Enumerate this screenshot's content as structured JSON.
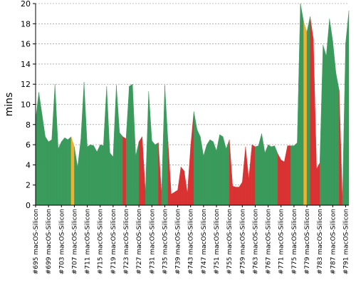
{
  "chart_data": {
    "type": "area",
    "ylabel": "mins",
    "ylim": [
      0,
      20
    ],
    "yticks": [
      0,
      2,
      4,
      6,
      8,
      10,
      12,
      14,
      16,
      18,
      20
    ],
    "grid": true,
    "status_colors": {
      "passed": "#3a9a5b",
      "failed": "#d93232",
      "unstable": "#f0b030"
    },
    "xtick_labels": [
      "#695 macOS-Silicon",
      "#699 macOS-Silicon",
      "#703 macOS-Silicon",
      "#707 macOS-Silicon",
      "#711 macOS-Silicon",
      "#715 macOS-Silicon",
      "#719 macOS-Silicon",
      "#723 macOS-Silicon",
      "#727 macOS-Silicon",
      "#731 macOS-Silicon",
      "#735 macOS-Silicon",
      "#739 macOS-Silicon",
      "#743 macOS-Silicon",
      "#747 macOS-Silicon",
      "#751 macOS-Silicon",
      "#755 macOS-Silicon",
      "#759 macOS-Silicon",
      "#763 macOS-Silicon",
      "#767 macOS-Silicon",
      "#771 macOS-Silicon",
      "#775 macOS-Silicon",
      "#779 macOS-Silicon",
      "#783 macOS-Silicon",
      "#787 macOS-Silicon",
      "#791 macOS-Silicon"
    ],
    "x": [
      695,
      696,
      697,
      698,
      699,
      700,
      701,
      702,
      703,
      704,
      705,
      706,
      707,
      708,
      709,
      710,
      711,
      712,
      713,
      714,
      715,
      716,
      717,
      718,
      719,
      720,
      721,
      722,
      723,
      724,
      725,
      726,
      727,
      728,
      729,
      730,
      731,
      732,
      733,
      734,
      735,
      736,
      737,
      738,
      739,
      740,
      741,
      742,
      743,
      744,
      745,
      746,
      747,
      748,
      749,
      750,
      751,
      752,
      753,
      754,
      755,
      756,
      757,
      758,
      759,
      760,
      761,
      762,
      763,
      764,
      765,
      766,
      767,
      768,
      769,
      770,
      771,
      772,
      773,
      774,
      775,
      776,
      777,
      778,
      779,
      780,
      781,
      782,
      783,
      784,
      785,
      786,
      787,
      788,
      789,
      790,
      791,
      792
    ],
    "values": [
      8.5,
      11.2,
      9.0,
      6.8,
      6.3,
      6.5,
      12.0,
      5.6,
      6.3,
      6.7,
      6.5,
      6.8,
      5.8,
      3.8,
      6.5,
      12.2,
      5.8,
      6.0,
      5.9,
      5.3,
      6.0,
      5.9,
      11.8,
      5.2,
      4.8,
      11.9,
      7.2,
      6.8,
      6.6,
      11.8,
      12.0,
      4.9,
      6.3,
      6.8,
      1.3,
      11.3,
      6.4,
      6.0,
      6.2,
      1.2,
      11.9,
      6.3,
      1.1,
      1.3,
      1.5,
      3.8,
      3.4,
      1.2,
      5.8,
      9.3,
      7.5,
      6.8,
      4.9,
      6.0,
      6.5,
      6.3,
      5.4,
      7.0,
      6.8,
      5.6,
      6.5,
      1.9,
      1.8,
      1.8,
      2.3,
      5.8,
      2.6,
      6.0,
      5.8,
      5.9,
      7.1,
      5.2,
      6.0,
      5.8,
      5.9,
      5.1,
      4.5,
      4.3,
      5.9,
      5.9,
      5.9,
      6.2,
      20.7,
      18.2,
      17.2,
      18.7,
      16.5,
      3.6,
      4.2,
      15.9,
      14.8,
      18.5,
      16.3,
      13.1,
      11.4,
      0.5,
      16.1,
      19.3
    ],
    "status": [
      "passed",
      "passed",
      "passed",
      "passed",
      "passed",
      "passed",
      "passed",
      "passed",
      "passed",
      "passed",
      "passed",
      "passed",
      "unstable",
      "passed",
      "passed",
      "passed",
      "passed",
      "passed",
      "passed",
      "passed",
      "passed",
      "passed",
      "passed",
      "passed",
      "passed",
      "passed",
      "passed",
      "passed",
      "failed",
      "passed",
      "passed",
      "passed",
      "passed",
      "failed",
      "failed",
      "passed",
      "passed",
      "passed",
      "passed",
      "failed",
      "passed",
      "passed",
      "failed",
      "failed",
      "failed",
      "failed",
      "failed",
      "failed",
      "failed",
      "failed",
      "passed",
      "passed",
      "passed",
      "passed",
      "passed",
      "passed",
      "passed",
      "passed",
      "passed",
      "passed",
      "passed",
      "failed",
      "failed",
      "failed",
      "failed",
      "failed",
      "failed",
      "failed",
      "failed",
      "passed",
      "passed",
      "passed",
      "passed",
      "passed",
      "passed",
      "passed",
      "failed",
      "failed",
      "failed",
      "failed",
      "passed",
      "passed",
      "passed",
      "passed",
      "unstable",
      "passed",
      "failed",
      "failed",
      "failed",
      "passed",
      "passed",
      "passed",
      "passed",
      "passed",
      "passed",
      "failed",
      "passed",
      "passed"
    ]
  }
}
